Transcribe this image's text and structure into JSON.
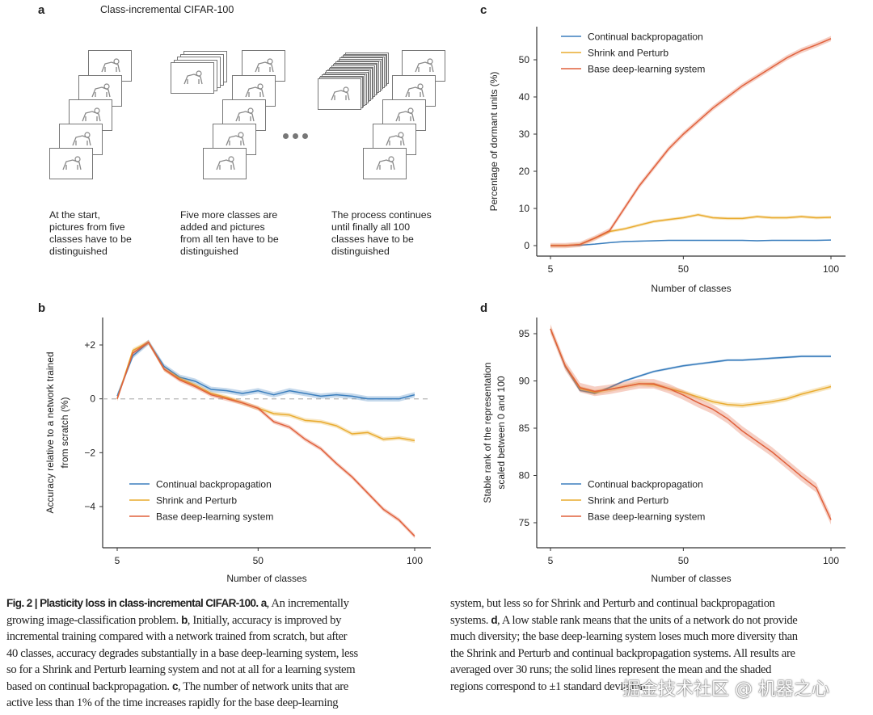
{
  "panel_a": {
    "letter": "a",
    "title": "Class-incremental CIFAR-100",
    "groups": [
      {
        "icons": [
          "train",
          "frog",
          "shark",
          "tree",
          "dog"
        ],
        "caption": [
          "At the start,",
          "pictures from five",
          "classes have to be",
          "distinguished"
        ]
      },
      {
        "stack_icon": "dog",
        "icons": [
          "cat",
          "airplane",
          "tv",
          "elephant",
          "bicycle"
        ],
        "caption": [
          "Five more classes are",
          "added and pictures",
          "from all ten have to be",
          "distinguished"
        ]
      },
      {
        "stack_icon": "fire-truck",
        "icons": [
          "horse",
          "car",
          "rabbit",
          "ship",
          "whale"
        ],
        "caption": [
          "The process continues",
          "until finally all 100",
          "classes have to be",
          "distinguished"
        ]
      }
    ]
  },
  "colors": {
    "cbp": "#3b7ebd",
    "sp": "#e9ab2f",
    "base": "#e0613c",
    "axis": "#333333",
    "zero_line": "#bbbbbb"
  },
  "chart_data": [
    {
      "panel": "b",
      "type": "line",
      "xlabel": "Number of classes",
      "ylabel": [
        "Accuracy relative to a network trained",
        "from scratch (%)"
      ],
      "xlim": [
        5,
        100
      ],
      "ylim": [
        -5.3,
        2.8
      ],
      "xticks": [
        5,
        50,
        100
      ],
      "xtick_labels": [
        "5",
        "50",
        "100"
      ],
      "yticks": [
        2,
        0,
        -2,
        -4
      ],
      "ytick_labels": [
        "+2",
        "0",
        "−2",
        "−4"
      ],
      "reference_line": 0,
      "legend_position": "bottom-left",
      "x": [
        5,
        10,
        15,
        20,
        25,
        30,
        35,
        40,
        45,
        50,
        55,
        60,
        65,
        70,
        75,
        80,
        85,
        90,
        95,
        100
      ],
      "series": [
        {
          "key": "cbp",
          "name": "Continual backpropagation",
          "band": 0.1,
          "values": [
            0.1,
            1.6,
            2.1,
            1.2,
            0.8,
            0.65,
            0.35,
            0.3,
            0.2,
            0.3,
            0.15,
            0.3,
            0.2,
            0.1,
            0.15,
            0.1,
            0.0,
            0.0,
            0.0,
            0.15
          ]
        },
        {
          "key": "sp",
          "name": "Shrink and Perturb",
          "band": 0.08,
          "values": [
            0.0,
            1.8,
            2.1,
            1.1,
            0.75,
            0.5,
            0.2,
            0.05,
            -0.15,
            -0.35,
            -0.55,
            -0.6,
            -0.8,
            -0.85,
            -1.0,
            -1.3,
            -1.25,
            -1.5,
            -1.45,
            -1.55
          ]
        },
        {
          "key": "base",
          "name": "Base deep-learning system",
          "band": 0.08,
          "values": [
            0.0,
            1.7,
            2.1,
            1.1,
            0.7,
            0.45,
            0.15,
            0.0,
            -0.15,
            -0.35,
            -0.85,
            -1.05,
            -1.5,
            -1.85,
            -2.4,
            -2.9,
            -3.5,
            -4.1,
            -4.5,
            -5.1
          ]
        }
      ]
    },
    {
      "panel": "c",
      "type": "line",
      "xlabel": "Number of classes",
      "ylabel": [
        "Percentage of dormant units (%)"
      ],
      "xlim": [
        5,
        100
      ],
      "ylim": [
        -2.8,
        59
      ],
      "xticks": [
        5,
        50,
        100
      ],
      "xtick_labels": [
        "5",
        "50",
        "100"
      ],
      "yticks": [
        0,
        10,
        20,
        30,
        40,
        50
      ],
      "ytick_labels": [
        "0",
        "10",
        "20",
        "30",
        "40",
        "50"
      ],
      "legend_position": "top-left",
      "x": [
        5,
        10,
        15,
        20,
        25,
        30,
        35,
        40,
        45,
        50,
        55,
        60,
        65,
        70,
        75,
        80,
        85,
        90,
        95,
        100
      ],
      "series": [
        {
          "key": "cbp",
          "name": "Continual backpropagation",
          "band": 0.15,
          "values": [
            0,
            0,
            0.1,
            0.4,
            0.8,
            1.1,
            1.2,
            1.3,
            1.4,
            1.4,
            1.4,
            1.4,
            1.4,
            1.4,
            1.3,
            1.4,
            1.4,
            1.4,
            1.4,
            1.5
          ]
        },
        {
          "key": "sp",
          "name": "Shrink and Perturb",
          "band": 0.4,
          "values": [
            0,
            0,
            0.3,
            2,
            3.8,
            4.5,
            5.5,
            6.5,
            7,
            7.5,
            8.3,
            7.5,
            7.3,
            7.3,
            7.8,
            7.5,
            7.5,
            7.8,
            7.5,
            7.6
          ]
        },
        {
          "key": "base",
          "name": "Base deep-learning system",
          "band": 0.7,
          "values": [
            0,
            0,
            0.3,
            2,
            4,
            10,
            16,
            21,
            26,
            30,
            33.5,
            37,
            40,
            43,
            45.5,
            48,
            50.5,
            52.5,
            54,
            55.7
          ]
        }
      ]
    },
    {
      "panel": "d",
      "type": "line",
      "xlabel": "Number of classes",
      "ylabel": [
        "Stable rank of the representation",
        "scaled between 0 and 100"
      ],
      "xlim": [
        5,
        100
      ],
      "ylim": [
        72.4,
        96.7
      ],
      "xticks": [
        5,
        50,
        100
      ],
      "xtick_labels": [
        "5",
        "50",
        "100"
      ],
      "yticks": [
        95,
        90,
        85,
        80,
        75
      ],
      "ytick_labels": [
        "95",
        "90",
        "85",
        "80",
        "75"
      ],
      "legend_position": "bottom-left",
      "x": [
        5,
        10,
        15,
        20,
        25,
        30,
        35,
        40,
        45,
        50,
        55,
        60,
        65,
        70,
        75,
        80,
        85,
        90,
        95,
        100
      ],
      "series": [
        {
          "key": "cbp",
          "name": "Continual backpropagation",
          "band": 0.12,
          "values": [
            95.5,
            91.5,
            89,
            88.7,
            89.3,
            90,
            90.5,
            91,
            91.3,
            91.6,
            91.8,
            92,
            92.2,
            92.2,
            92.3,
            92.4,
            92.5,
            92.6,
            92.6,
            92.6
          ]
        },
        {
          "key": "sp",
          "name": "Shrink and Perturb",
          "band": 0.25,
          "values": [
            95.5,
            91.6,
            89.2,
            88.8,
            89.1,
            89.4,
            89.7,
            89.6,
            89.2,
            88.8,
            88.3,
            87.8,
            87.5,
            87.4,
            87.6,
            87.8,
            88.1,
            88.6,
            89.0,
            89.4
          ]
        },
        {
          "key": "base",
          "name": "Base deep-learning system",
          "band": 0.5,
          "values": [
            95.5,
            91.6,
            89.3,
            88.9,
            89.1,
            89.4,
            89.7,
            89.7,
            89.2,
            88.5,
            87.7,
            87.0,
            86.0,
            84.7,
            83.6,
            82.5,
            81.2,
            79.9,
            78.7,
            75.3
          ]
        }
      ]
    }
  ],
  "caption": {
    "left_lines": [
      [
        "Fig. 2 | Plasticity loss in class-incremental CIFAR-100. a",
        ", An incrementally"
      ],
      [
        "growing image-classification problem. ",
        "b",
        ", Initially, accuracy is improved by"
      ],
      [
        "incremental training compared with a network trained from scratch, but after"
      ],
      [
        "40 classes, accuracy degrades substantially in a base deep-learning system, less"
      ],
      [
        "so for a Shrink and Perturb learning system and not at all for a learning system"
      ],
      [
        "based on continual backpropagation. ",
        "c",
        ", The number of network units that are"
      ],
      [
        "active less than 1% of the time increases rapidly for the base deep-learning"
      ]
    ],
    "right_lines": [
      [
        "system, but less so for Shrink and Perturb and continual backpropagation"
      ],
      [
        "systems. ",
        "d",
        ", A low stable rank means that the units of a network do not provide"
      ],
      [
        "much diversity; the base deep-learning system loses much more diversity than"
      ],
      [
        "the Shrink and Perturb and continual backpropagation systems. All results are"
      ],
      [
        "averaged over 30 runs; the solid lines represent the mean and the shaded"
      ],
      [
        "regions correspond to ±1 standard deviation."
      ]
    ]
  },
  "watermark": "掘金技术社区 @ 机器之心"
}
